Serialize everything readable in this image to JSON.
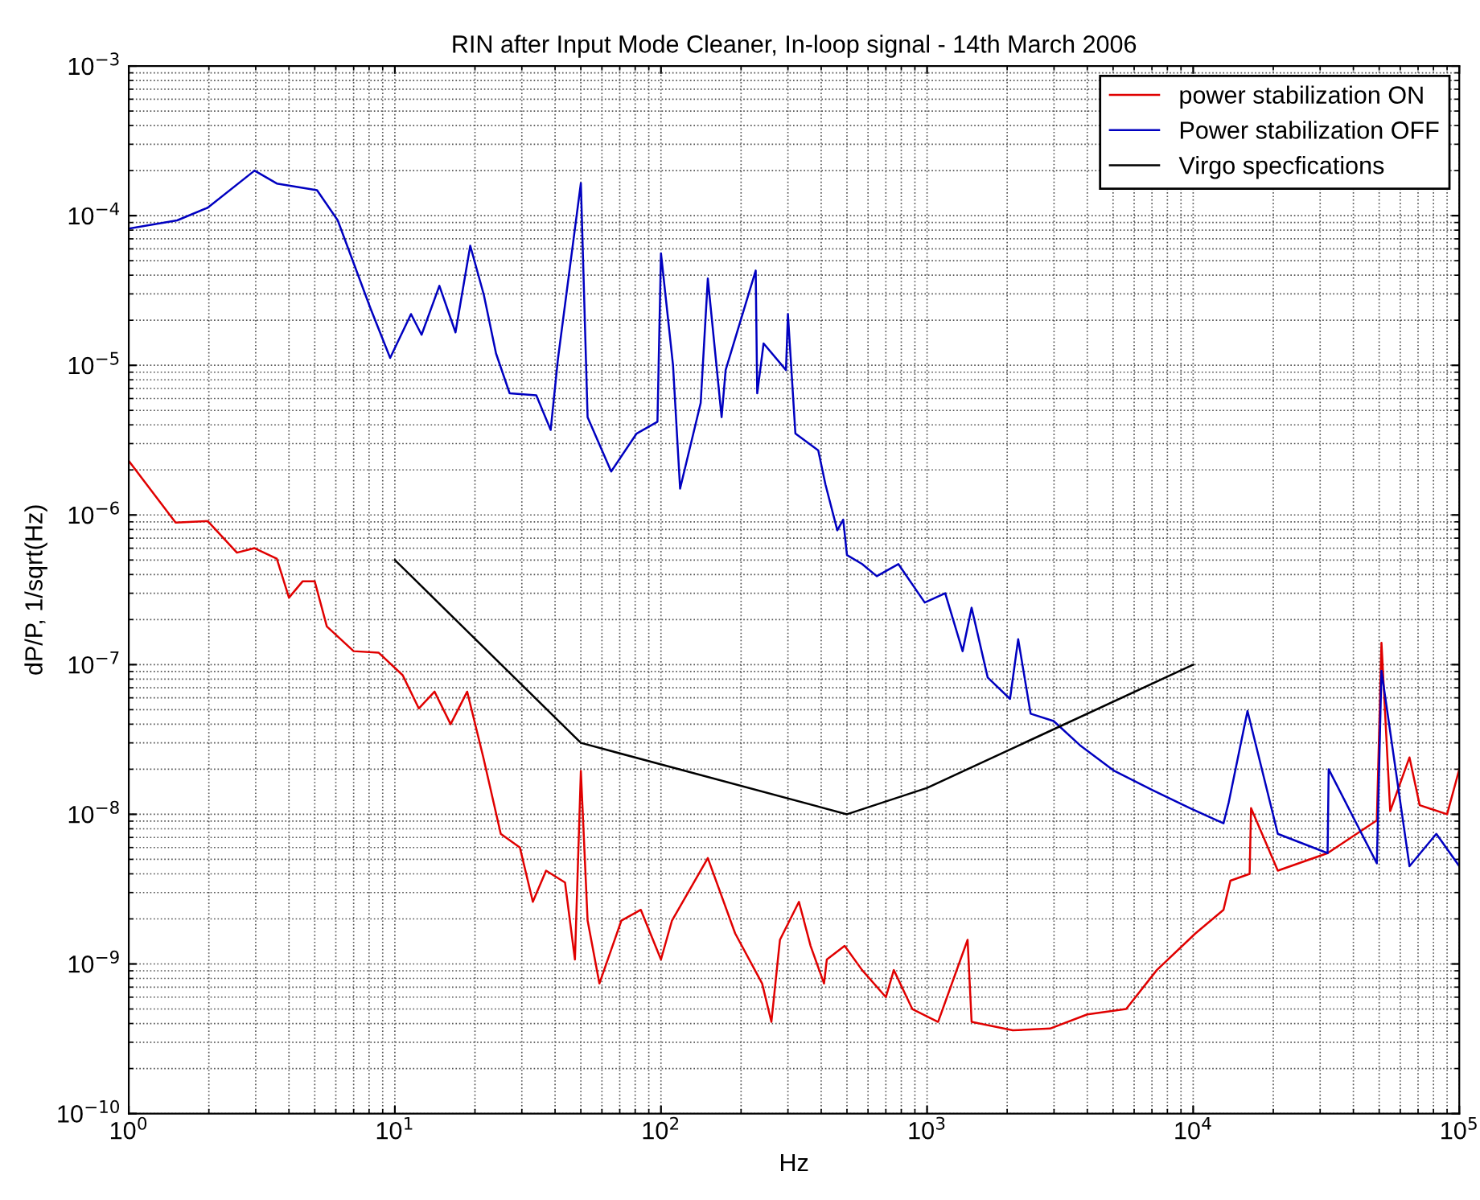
{
  "chart_data": {
    "type": "line",
    "title": "RIN after Input Mode Cleaner, In-loop signal - 14th March 2006",
    "xlabel": "Hz",
    "ylabel": "dP/P, 1/sqrt(Hz)",
    "log": "xy",
    "grid": true,
    "legend": "top right",
    "line_style": "solid",
    "marker": "none",
    "xlim": [
      1,
      100000
    ],
    "ylim": [
      1e-10,
      0.001
    ],
    "xticks": [
      {
        "value": 1,
        "label": "10$^{0}$"
      },
      {
        "value": 10,
        "label": "10$^{1}$"
      },
      {
        "value": 100,
        "label": "10$^{2}$"
      },
      {
        "value": 1000,
        "label": "10$^{3}$"
      },
      {
        "value": 10000,
        "label": "10$^{4}$"
      },
      {
        "value": 100000,
        "label": "10$^{5}$"
      }
    ],
    "yticks": [
      {
        "value": 1e-10,
        "label": "10$^{−10}$"
      },
      {
        "value": 1e-09,
        "label": "10$^{−9}$"
      },
      {
        "value": 1e-08,
        "label": "10$^{−8}$"
      },
      {
        "value": 1e-07,
        "label": "10$^{−7}$"
      },
      {
        "value": 1e-06,
        "label": "10$^{−6}$"
      },
      {
        "value": 1e-05,
        "label": "10$^{−5}$"
      },
      {
        "value": 0.0001,
        "label": "10$^{−4}$"
      },
      {
        "value": 0.001,
        "label": "10$^{−3}$"
      }
    ],
    "series": [
      {
        "name": "power stabilization ON",
        "color": "#e00000",
        "x": [
          1,
          1.5,
          1.98,
          2.55,
          2.97,
          3.6,
          4.0,
          4.5,
          5.0,
          5.55,
          7.0,
          8.7,
          10.7,
          12.3,
          14.1,
          16.2,
          18.7,
          21.5,
          25,
          29.5,
          33,
          37,
          43.6,
          47.5,
          50,
          53,
          58.7,
          71,
          84,
          100,
          110,
          150,
          190,
          240,
          260,
          280,
          330,
          365,
          410,
          420,
          490,
          570,
          700,
          750,
          880,
          1100,
          1420,
          1470,
          2100,
          2900,
          4000,
          5600,
          7300,
          10200,
          13000,
          13800,
          16300,
          16500,
          20800,
          32000,
          49000,
          51000,
          55000,
          65000,
          71000,
          90000,
          100000
        ],
        "values": [
          2.3e-06,
          8.9e-07,
          9.1e-07,
          5.6e-07,
          6e-07,
          5.1e-07,
          2.8e-07,
          3.6e-07,
          3.6e-07,
          1.8e-07,
          1.23e-07,
          1.2e-07,
          8.5e-08,
          5.1e-08,
          6.6e-08,
          4e-08,
          6.6e-08,
          2.4e-08,
          7.4e-09,
          6e-09,
          2.6e-09,
          4.2e-09,
          3.5e-09,
          1.07e-09,
          1.95e-08,
          1.95e-09,
          7.4e-10,
          1.95e-09,
          2.3e-09,
          1.07e-09,
          1.95e-09,
          5.1e-09,
          1.6e-09,
          7.4e-10,
          4.1e-10,
          1.45e-09,
          2.6e-09,
          1.32e-09,
          7.4e-10,
          1.07e-09,
          1.32e-09,
          9.1e-10,
          6e-10,
          9.1e-10,
          5e-10,
          4.1e-10,
          1.45e-09,
          4.1e-10,
          3.6e-10,
          3.7e-10,
          4.6e-10,
          5e-10,
          9.1e-10,
          1.6e-09,
          2.3e-09,
          3.6e-09,
          4e-09,
          1.1e-08,
          4.2e-09,
          5.5e-09,
          9.1e-09,
          1.4e-07,
          1.05e-08,
          2.4e-08,
          1.15e-08,
          1e-08,
          2e-08
        ]
      },
      {
        "name": "Power stabilization OFF",
        "color": "#0000c0",
        "x": [
          1,
          1.52,
          1.98,
          2.97,
          3.6,
          5.1,
          6.1,
          8.1,
          9.6,
          11.5,
          12.6,
          14.7,
          16.9,
          19.2,
          21.6,
          24,
          27,
          34,
          38.5,
          41,
          50,
          53,
          65,
          81,
          97,
          100,
          111,
          118,
          141,
          150,
          169,
          175,
          227,
          230,
          243,
          295,
          300,
          320,
          390,
          415,
          460,
          484,
          500,
          570,
          647,
          780,
          980,
          1170,
          1360,
          1470,
          1690,
          2050,
          2200,
          2450,
          2990,
          3750,
          5050,
          7030,
          9700,
          13000,
          13600,
          16000,
          20800,
          32000,
          32300,
          49000,
          51000,
          65000,
          82000,
          100000
        ],
        "values": [
          8.2e-05,
          9.3e-05,
          0.000113,
          0.0002,
          0.000164,
          0.000148,
          9.3e-05,
          2.4e-05,
          1.12e-05,
          2.2e-05,
          1.6e-05,
          3.4e-05,
          1.66e-05,
          6.3e-05,
          2.95e-05,
          1.2e-05,
          6.5e-06,
          6.3e-06,
          3.7e-06,
          1.1e-05,
          0.000165,
          4.5e-06,
          1.95e-06,
          3.5e-06,
          4.2e-06,
          5.6e-05,
          1e-05,
          1.5e-06,
          5.6e-06,
          3.8e-05,
          4.5e-06,
          9.3e-06,
          4.3e-05,
          6.5e-06,
          1.4e-05,
          9.3e-06,
          2.2e-05,
          3.5e-06,
          2.7e-06,
          1.6e-06,
          7.9e-07,
          9.3e-07,
          5.4e-07,
          4.7e-07,
          3.9e-07,
          4.7e-07,
          2.6e-07,
          3e-07,
          1.23e-07,
          2.4e-07,
          8.2e-08,
          5.9e-08,
          1.48e-07,
          4.7e-08,
          4.2e-08,
          2.9e-08,
          1.95e-08,
          1.45e-08,
          1.1e-08,
          8.7e-09,
          1.2e-08,
          4.9e-08,
          7.4e-09,
          5.5e-09,
          2e-08,
          4.7e-09,
          9.1e-08,
          4.5e-09,
          7.4e-09,
          4.5e-09
        ]
      },
      {
        "name": "Virgo specfications",
        "color": "#000000",
        "x": [
          10,
          50,
          500,
          1000,
          10000
        ],
        "values": [
          5e-07,
          3e-08,
          1e-08,
          1.5e-08,
          1e-07
        ]
      }
    ]
  }
}
